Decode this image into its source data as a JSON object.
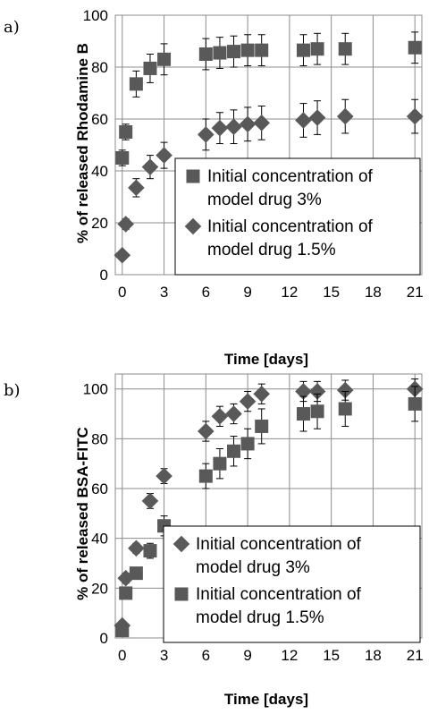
{
  "colors": {
    "marker": "#595959",
    "grid": "#8c8c8c",
    "axis": "#8c8c8c",
    "errorbar": "#000000"
  },
  "chart_data": [
    {
      "type": "scatter",
      "panel_label": "a)",
      "xlabel": "Time [days]",
      "ylabel": "% of released Rhodamine B",
      "xlim": [
        -0.5,
        21.5
      ],
      "ylim": [
        0,
        100
      ],
      "xticks": [
        0,
        3,
        6,
        9,
        12,
        15,
        18,
        21
      ],
      "yticks": [
        0,
        20,
        40,
        60,
        80,
        100
      ],
      "grid": true,
      "legend_position": "center-right",
      "series": [
        {
          "name": "Initial concentration of model drug 3%",
          "legend_lines": [
            "Initial concentration of",
            "model drug 3%"
          ],
          "marker": "square",
          "x": [
            0,
            0.25,
            1,
            2,
            3,
            6,
            7,
            8,
            9,
            10,
            13,
            14,
            16,
            21
          ],
          "y": [
            45,
            55,
            73.5,
            79.5,
            83,
            85,
            85.5,
            86,
            86.5,
            86.5,
            86.5,
            87,
            87,
            87.5
          ],
          "error": [
            3,
            3,
            5,
            5.5,
            6,
            6,
            6,
            6,
            6,
            6,
            6,
            6,
            6,
            6
          ]
        },
        {
          "name": "Initial concentration of model drug 1.5%",
          "legend_lines": [
            "Initial concentration of",
            "model drug 1.5%"
          ],
          "marker": "diamond",
          "x": [
            0,
            0.25,
            1,
            2,
            3,
            6,
            7,
            8,
            9,
            10,
            13,
            14,
            16,
            21
          ],
          "y": [
            7.5,
            19.5,
            33.5,
            41.5,
            46,
            54,
            56.5,
            57,
            58,
            58.5,
            59.5,
            60.5,
            61,
            61
          ],
          "error": [
            1,
            2,
            3.5,
            4.5,
            5,
            6,
            6,
            6.5,
            6.5,
            6.5,
            6.5,
            6.5,
            6.5,
            6.5
          ]
        }
      ]
    },
    {
      "type": "scatter",
      "panel_label": "b)",
      "xlabel": "Time [days]",
      "ylabel": "% of released BSA-FITC",
      "xlim": [
        -0.5,
        21.5
      ],
      "ylim": [
        0,
        106
      ],
      "xticks": [
        0,
        3,
        6,
        9,
        12,
        15,
        18,
        21
      ],
      "yticks": [
        0,
        20,
        40,
        60,
        80,
        100
      ],
      "grid": true,
      "legend_position": "bottom-right",
      "series": [
        {
          "name": "Initial concentration of model drug 3%",
          "legend_lines": [
            "Initial concentration of",
            "model drug 3%"
          ],
          "marker": "diamond",
          "x": [
            0,
            0.25,
            1,
            2,
            3,
            6,
            7,
            8,
            9,
            10,
            13,
            14,
            16,
            21
          ],
          "y": [
            5,
            24,
            36,
            55,
            65,
            83,
            89,
            90,
            95,
            98,
            99,
            99,
            99.5,
            100
          ],
          "error": [
            1,
            2,
            2,
            3,
            3,
            4,
            4,
            4,
            4,
            4,
            4,
            4,
            4,
            4
          ]
        },
        {
          "name": "Initial concentration of model drug 1.5%",
          "legend_lines": [
            "Initial concentration of",
            "model drug 1.5%"
          ],
          "marker": "square",
          "x": [
            0,
            0.25,
            1,
            2,
            3,
            6,
            7,
            8,
            9,
            10,
            13,
            14,
            16,
            21
          ],
          "y": [
            3,
            18,
            26,
            35,
            45,
            65,
            70,
            75,
            78,
            85,
            90,
            91,
            92,
            94
          ],
          "error": [
            1,
            2,
            2,
            3,
            4,
            5,
            6,
            6,
            6,
            7,
            7,
            7,
            7,
            7
          ]
        }
      ]
    }
  ]
}
